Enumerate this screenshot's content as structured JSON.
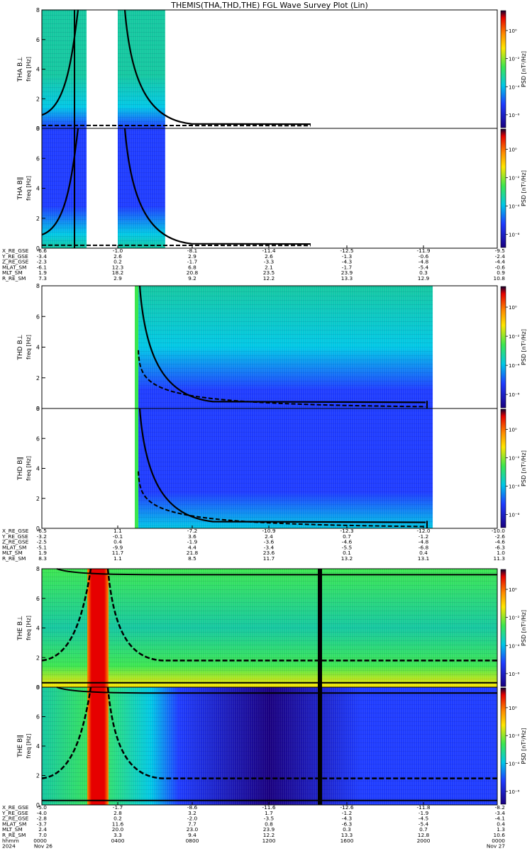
{
  "title": "THEMIS(THA,THD,THE) FGL Wave Survey Plot (Lin)",
  "chart_data": {
    "type": "heatmap",
    "x_time_ticks": [
      "0000",
      "0400",
      "0800",
      "1200",
      "1600",
      "2000",
      "0000"
    ],
    "x_time_range_hours": [
      0,
      24
    ],
    "date_row": [
      "2024",
      "Nov 26",
      "Nov 27"
    ],
    "time_row_label": "hhmm",
    "panels": [
      {
        "id": "tha_bl",
        "ylabel": "THA B⊥",
        "ysub": "freq [Hz]",
        "cbar_label": "PSD [nT²/Hz]",
        "ylim": [
          0,
          8
        ],
        "yticks": [
          "0",
          "2",
          "4",
          "6",
          "8"
        ],
        "cbar_ticks": [
          "10⁰",
          "10⁻²",
          "10⁻⁴",
          "10⁻⁶"
        ]
      },
      {
        "id": "tha_bll",
        "ylabel": "THA B∥",
        "ysub": "freq [Hz]",
        "cbar_label": "PSD [nT²/Hz]",
        "ylim": [
          0,
          8
        ],
        "yticks": [
          "0",
          "2",
          "4",
          "6",
          "8"
        ],
        "cbar_ticks": [
          "10⁰",
          "10⁻²",
          "10⁻⁴",
          "10⁻⁶"
        ]
      },
      {
        "id": "thd_bl",
        "ylabel": "THD B⊥",
        "ysub": "freq [Hz]",
        "cbar_label": "PSD [nT²/Hz]",
        "ylim": [
          0,
          8
        ],
        "yticks": [
          "0",
          "2",
          "4",
          "6",
          "8"
        ],
        "cbar_ticks": [
          "10⁰",
          "10⁻²",
          "10⁻⁴",
          "10⁻⁶"
        ]
      },
      {
        "id": "thd_bll",
        "ylabel": "THD B∥",
        "ysub": "freq [Hz]",
        "cbar_label": "PSD [nT²/Hz]",
        "ylim": [
          0,
          8
        ],
        "yticks": [
          "0",
          "2",
          "4",
          "6",
          "8"
        ],
        "cbar_ticks": [
          "10⁰",
          "10⁻²",
          "10⁻⁴",
          "10⁻⁶"
        ]
      },
      {
        "id": "the_bl",
        "ylabel": "THE B⊥",
        "ysub": "freq [Hz]",
        "cbar_label": "PSD [nT²/Hz]",
        "ylim": [
          0,
          8
        ],
        "yticks": [
          "0",
          "2",
          "4",
          "6",
          "8"
        ],
        "cbar_ticks": [
          "10⁰",
          "10⁻²",
          "10⁻⁴",
          "10⁻⁶"
        ]
      },
      {
        "id": "the_bll",
        "ylabel": "THE B∥",
        "ysub": "freq [Hz]",
        "cbar_label": "PSD [nT²/Hz]",
        "ylim": [
          0,
          8
        ],
        "yticks": [
          "0",
          "2",
          "4",
          "6",
          "8"
        ],
        "cbar_ticks": [
          "10⁰",
          "10⁻²",
          "10⁻⁴",
          "10⁻⁶"
        ]
      }
    ],
    "ephemeris": [
      {
        "probe": "THA",
        "labels": [
          "X_RE_GSE",
          "Y_RE_GSE",
          "Z_RE_GSE",
          "MLAT_SM",
          "MLT_SM",
          "R_RE_SM"
        ],
        "rows": [
          [
            "-6.6",
            "-1.0",
            "-8.1",
            "-11.4",
            "-12.5",
            "-11.9",
            "-9.5"
          ],
          [
            "-3.4",
            "2.6",
            "2.9",
            "2.6",
            "-1.3",
            "-0.6",
            "-2.4"
          ],
          [
            "-2.3",
            "0.2",
            "-1.7",
            "-3.3",
            "-4.3",
            "-4.8",
            "-4.4"
          ],
          [
            "-6.1",
            "12.3",
            "6.8",
            "2.1",
            "-1.7",
            "-5.4",
            "-0.6"
          ],
          [
            "1.9",
            "18.2",
            "20.8",
            "23.5",
            "23.9",
            "0.3",
            "0.9"
          ],
          [
            "7.3",
            "2.9",
            "9.2",
            "12.2",
            "13.3",
            "12.9",
            "10.8"
          ]
        ]
      },
      {
        "probe": "THD",
        "labels": [
          "X_RE_GSE",
          "Y_RE_GSE",
          "Z_RE_GSE",
          "MLAT_SM",
          "MLT_SM",
          "R_RE_SM"
        ],
        "rows": [
          [
            "-6.5",
            "1.1",
            "-7.2",
            "-10.9",
            "-12.3",
            "-12.0",
            "-10.0"
          ],
          [
            "-3.2",
            "-0.1",
            "3.6",
            "2.4",
            "0.7",
            "-1.2",
            "-2.6"
          ],
          [
            "-2.5",
            "0.4",
            "-1.9",
            "-3.6",
            "-4.6",
            "-4.8",
            "-4.6"
          ],
          [
            "-5.1",
            "-9.9",
            "4.4",
            "-3.4",
            "-5.5",
            "-6.8",
            "-6.3"
          ],
          [
            "1.9",
            "11.7",
            "21.8",
            "23.6",
            "0.1",
            "0.4",
            "1.0"
          ],
          [
            "8.3",
            "1.1",
            "8.5",
            "11.7",
            "13.2",
            "13.1",
            "11.3"
          ]
        ]
      },
      {
        "probe": "THE",
        "labels": [
          "X_RE_GSE",
          "Y_RE_GSE",
          "Z_RE_GSE",
          "MLAT_SM",
          "MLT_SM",
          "R_RE_SM"
        ],
        "rows": [
          [
            "-5.0",
            "-1.7",
            "-8.6",
            "-11.6",
            "-12.6",
            "-11.8",
            "-8.2"
          ],
          [
            "-4.0",
            "2.8",
            "3.2",
            "1.7",
            "-1.2",
            "-1.9",
            "-3.4"
          ],
          [
            "-2.8",
            "0.2",
            "-2.0",
            "-3.5",
            "-4.3",
            "-4.5",
            "-4.1"
          ],
          [
            "-3.7",
            "11.6",
            "7.7",
            "0.8",
            "-6.3",
            "-5.4",
            "0.4"
          ],
          [
            "2.4",
            "20.0",
            "23.0",
            "23.9",
            "0.3",
            "0.7",
            "1.3"
          ],
          [
            "7.0",
            "3.3",
            "9.4",
            "12.2",
            "13.3",
            "12.8",
            "10.6"
          ]
        ]
      }
    ]
  },
  "colors": {
    "c_lo": "#1a0080",
    "c_blue": "#1e3cff",
    "c_cyan": "#00c8e6",
    "c_teal": "#14c8a0",
    "c_green": "#3ce650",
    "c_yellow": "#ffe600",
    "c_orange": "#ff8c00",
    "c_red": "#e60000",
    "c_dark": "#140030"
  }
}
